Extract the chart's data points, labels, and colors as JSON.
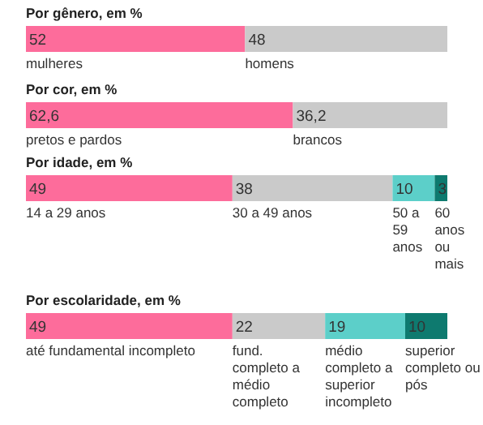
{
  "chart_data": [
    {
      "type": "bar",
      "orientation": "horizontal",
      "stacked": true,
      "data_labels": true,
      "title": "Por gênero, em %",
      "categories": [
        null
      ],
      "series": [
        {
          "name": "mulheres",
          "color": "#fd6c9b",
          "values": [
            52
          ]
        },
        {
          "name": "homens",
          "color": "#cacaca",
          "values": [
            48
          ]
        }
      ]
    },
    {
      "type": "bar",
      "orientation": "horizontal",
      "stacked": true,
      "title": "Por cor, em %",
      "categories": [
        null
      ],
      "series": [
        {
          "name": "pretos e pardos",
          "color": "#fd6c9b",
          "values": [
            62.6
          ],
          "value_labels": [
            "62,6"
          ]
        },
        {
          "name": "brancos",
          "color": "#cacaca",
          "values": [
            36.2
          ],
          "value_labels": [
            "36,2"
          ]
        }
      ]
    },
    {
      "type": "bar",
      "orientation": "horizontal",
      "stacked": true,
      "data_labels": true,
      "title": "Por idade, em %",
      "categories": [
        null
      ],
      "series": [
        {
          "name": "14 a 29 anos",
          "color": "#fd6c9b",
          "values": [
            49
          ]
        },
        {
          "name": "30 a 49 anos",
          "color": "#cacaca",
          "values": [
            38
          ]
        },
        {
          "name": "50 a 59 anos",
          "color": "#5ccfc9",
          "values": [
            10
          ]
        },
        {
          "name": "60 anos ou mais",
          "color": "#0e7a6f",
          "values": [
            3
          ]
        }
      ]
    },
    {
      "type": "bar",
      "orientation": "horizontal",
      "stacked": true,
      "data_labels": true,
      "title": "Por escolaridade, em %",
      "categories": [
        null
      ],
      "series": [
        {
          "name": "até fundamental incompleto",
          "color": "#fd6c9b",
          "values": [
            49
          ]
        },
        {
          "name": "fund. completo a médio completo",
          "color": "#cacaca",
          "values": [
            22
          ]
        },
        {
          "name": "médio completo a superior incompleto",
          "color": "#5ccfc9",
          "values": [
            19
          ]
        },
        {
          "name": "superior completo ou pós",
          "color": "#0e7a6f",
          "values": [
            10
          ]
        }
      ]
    }
  ]
}
